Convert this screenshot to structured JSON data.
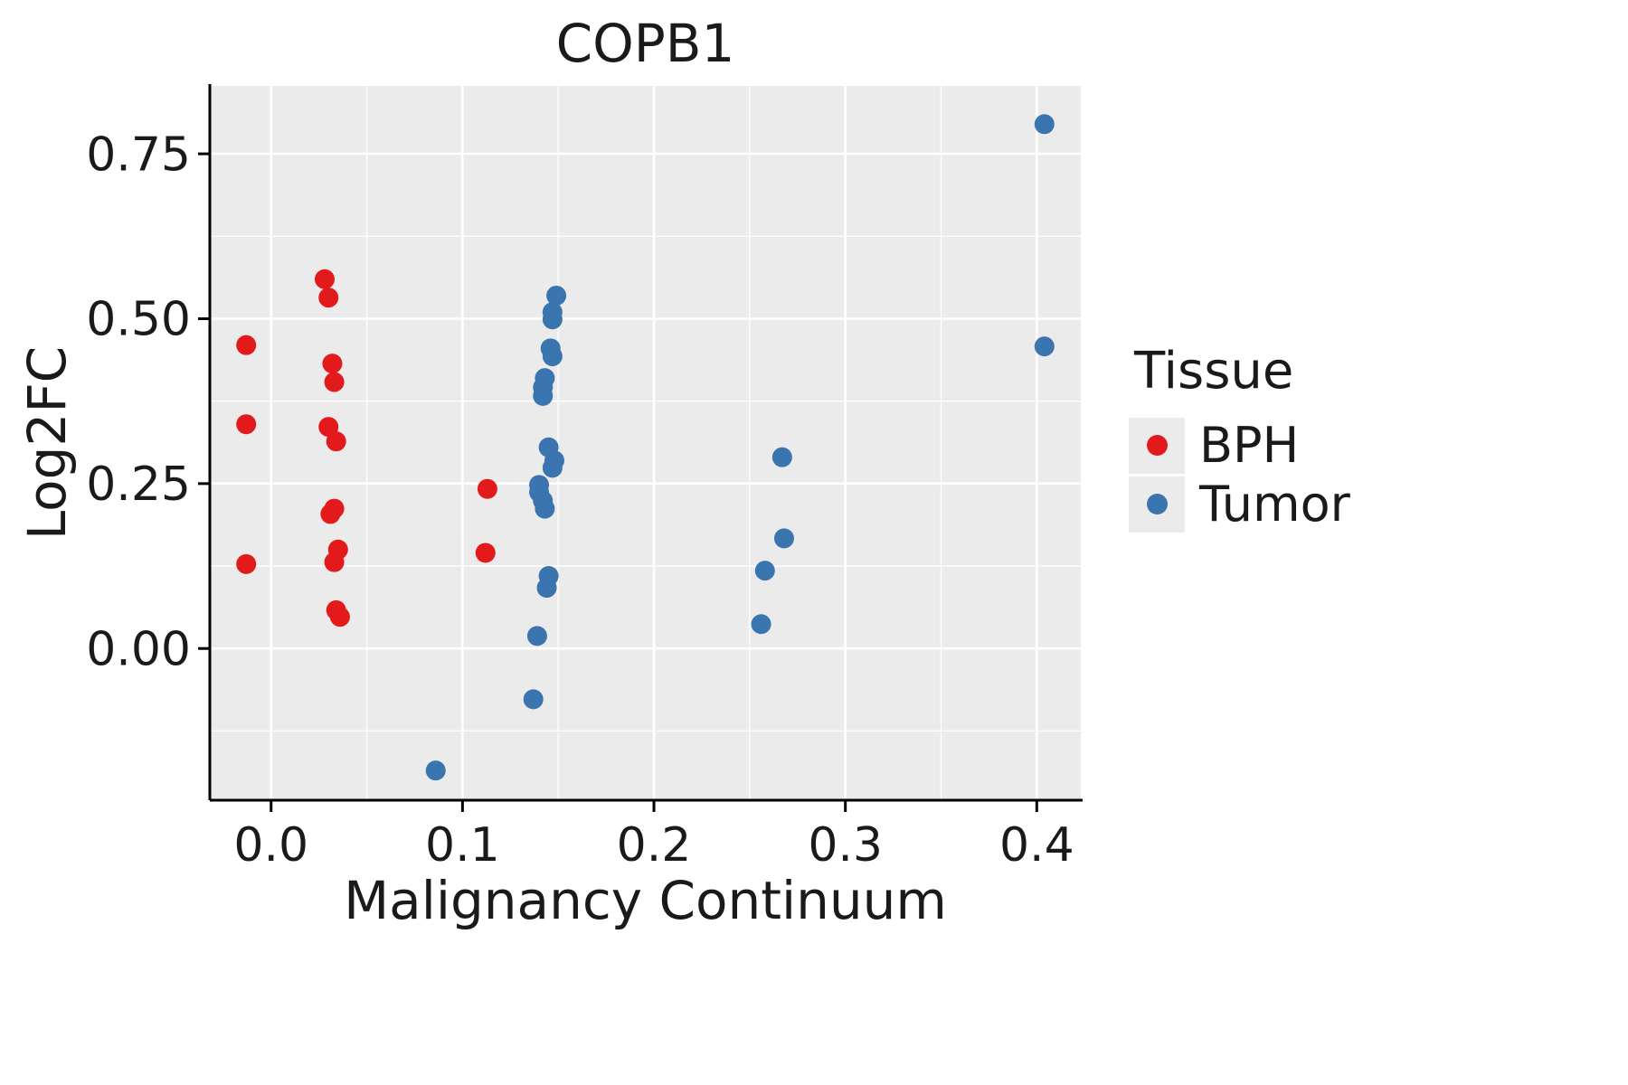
{
  "chart_data": {
    "type": "scatter",
    "title": "COPB1",
    "xlabel": "Malignancy Continuum",
    "ylabel": "Log2FC",
    "xlim": [
      -0.032,
      0.423
    ],
    "ylim": [
      -0.23,
      0.853
    ],
    "x_ticks": {
      "values": [
        0.0,
        0.1,
        0.2,
        0.3,
        0.4
      ],
      "labels": [
        "0.0",
        "0.1",
        "0.2",
        "0.3",
        "0.4"
      ]
    },
    "y_ticks": {
      "values": [
        0.0,
        0.25,
        0.5,
        0.75
      ],
      "labels": [
        "0.00",
        "0.25",
        "0.50",
        "0.75"
      ]
    },
    "x_minor_ticks": [
      0.05,
      0.15,
      0.25,
      0.35
    ],
    "y_minor_ticks": [
      -0.125,
      0.125,
      0.375,
      0.625
    ],
    "grid": true,
    "panel_background": "#ebebeb",
    "grid_color": "#ffffff",
    "axis_color": "#000000",
    "point_radius": 11,
    "legend": {
      "title": "Tissue",
      "position": "right",
      "entries": [
        {
          "label": "BPH",
          "color": "#e31a1c"
        },
        {
          "label": "Tumor",
          "color": "#3b75af"
        }
      ]
    },
    "series": [
      {
        "name": "BPH",
        "color": "#e31a1c",
        "points": [
          [
            -0.013,
            0.46
          ],
          [
            -0.013,
            0.34
          ],
          [
            -0.013,
            0.128
          ],
          [
            0.028,
            0.56
          ],
          [
            0.03,
            0.532
          ],
          [
            0.032,
            0.432
          ],
          [
            0.033,
            0.404
          ],
          [
            0.03,
            0.336
          ],
          [
            0.034,
            0.314
          ],
          [
            0.033,
            0.212
          ],
          [
            0.031,
            0.204
          ],
          [
            0.035,
            0.15
          ],
          [
            0.033,
            0.131
          ],
          [
            0.034,
            0.058
          ],
          [
            0.036,
            0.048
          ],
          [
            0.113,
            0.242
          ],
          [
            0.112,
            0.145
          ]
        ]
      },
      {
        "name": "Tumor",
        "color": "#3b75af",
        "points": [
          [
            0.086,
            -0.185
          ],
          [
            0.149,
            0.535
          ],
          [
            0.147,
            0.51
          ],
          [
            0.147,
            0.499
          ],
          [
            0.146,
            0.455
          ],
          [
            0.147,
            0.443
          ],
          [
            0.143,
            0.41
          ],
          [
            0.142,
            0.396
          ],
          [
            0.142,
            0.383
          ],
          [
            0.145,
            0.305
          ],
          [
            0.148,
            0.285
          ],
          [
            0.147,
            0.274
          ],
          [
            0.14,
            0.248
          ],
          [
            0.14,
            0.237
          ],
          [
            0.142,
            0.224
          ],
          [
            0.143,
            0.212
          ],
          [
            0.145,
            0.11
          ],
          [
            0.144,
            0.092
          ],
          [
            0.139,
            0.019
          ],
          [
            0.137,
            -0.077
          ],
          [
            0.267,
            0.29
          ],
          [
            0.268,
            0.167
          ],
          [
            0.258,
            0.118
          ],
          [
            0.256,
            0.037
          ],
          [
            0.404,
            0.795
          ],
          [
            0.404,
            0.458
          ]
        ]
      }
    ]
  }
}
